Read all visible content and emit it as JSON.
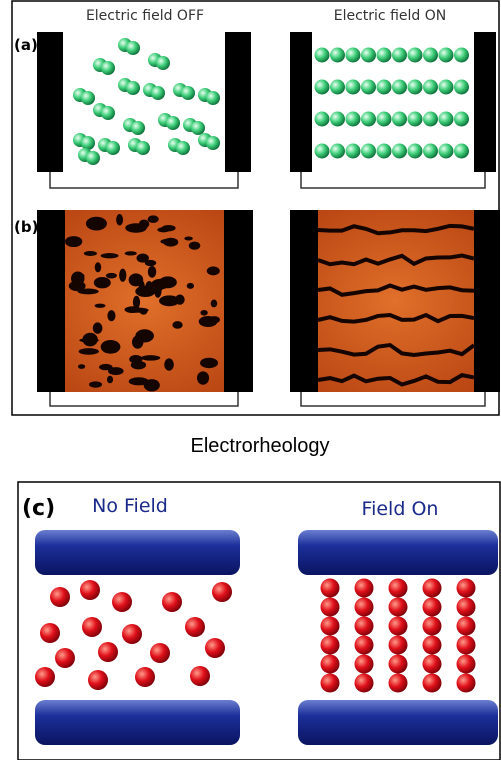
{
  "panel_a": {
    "tag": "(a)",
    "left_title": "Electric field OFF",
    "right_title": "Electric field ON"
  },
  "panel_b": {
    "tag": "(b)"
  },
  "caption": "Electrorheology",
  "panel_c": {
    "tag": "(c)",
    "left_title": "No Field",
    "right_title": "Field On"
  }
}
